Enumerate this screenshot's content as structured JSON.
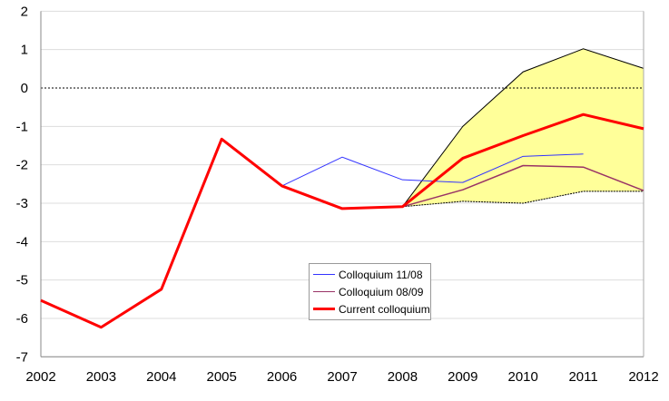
{
  "chart_data": {
    "type": "line",
    "x": [
      2002,
      2003,
      2004,
      2005,
      2006,
      2007,
      2008,
      2009,
      2010,
      2011,
      2012
    ],
    "ylim": [
      -7,
      2
    ],
    "yticks": [
      2,
      1,
      0,
      -1,
      -2,
      -3,
      -4,
      -5,
      -6,
      -7
    ],
    "grid": true,
    "legend": "center-bottom",
    "band": {
      "color": "#FFFF99",
      "upper": [
        null,
        null,
        null,
        null,
        null,
        null,
        -3.09,
        -1.0,
        0.42,
        1.02,
        0.51
      ],
      "lower": [
        null,
        null,
        null,
        null,
        null,
        null,
        -3.09,
        -2.95,
        -3.0,
        -2.69,
        -2.69
      ]
    },
    "series": [
      {
        "name": "Colloquium 11/08",
        "color": "#3333FF",
        "width": 1,
        "values": [
          -5.53,
          -6.23,
          -5.24,
          -1.33,
          -2.55,
          -1.8,
          -2.39,
          -2.46,
          -1.78,
          -1.72,
          null
        ]
      },
      {
        "name": "Colloquium 08/09",
        "color": "#993366",
        "width": 1.5,
        "values": [
          -5.53,
          -6.23,
          -5.24,
          -1.33,
          -2.55,
          -3.14,
          -3.09,
          -2.65,
          -2.02,
          -2.06,
          -2.67
        ]
      },
      {
        "name": "Current colloquium",
        "color": "#FF0000",
        "width": 3,
        "values": [
          -5.53,
          -6.23,
          -5.24,
          -1.33,
          -2.55,
          -3.14,
          -3.09,
          -1.83,
          -1.24,
          -0.69,
          -1.06
        ]
      }
    ]
  }
}
